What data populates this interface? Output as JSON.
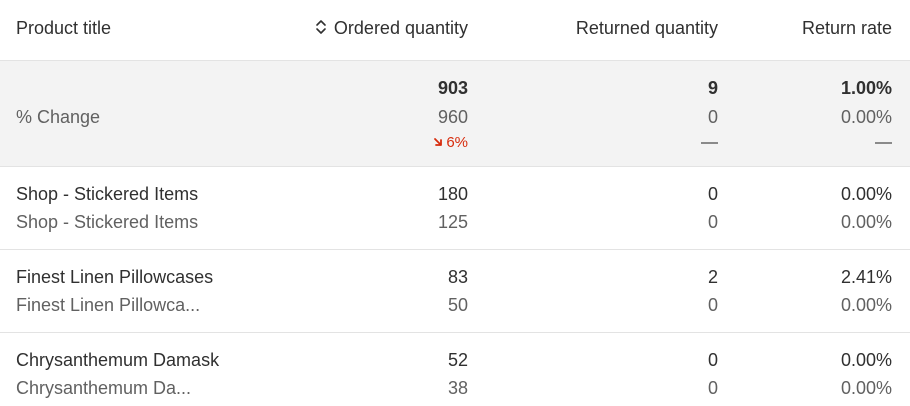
{
  "header": {
    "product_title": "Product title",
    "ordered_quantity": "Ordered quantity",
    "returned_quantity": "Returned quantity",
    "return_rate": "Return rate"
  },
  "summary": {
    "label": "% Change",
    "ordered_current": "903",
    "ordered_previous": "960",
    "ordered_change": "6%",
    "returned_current": "9",
    "returned_previous": "0",
    "rate_current": "1.00%",
    "rate_previous": "0.00%",
    "change_color": "#d72c0d"
  },
  "rows": [
    {
      "title": "Shop - Stickered Items",
      "title_previous": "Shop - Stickered Items",
      "ordered_current": "180",
      "ordered_previous": "125",
      "returned_current": "0",
      "returned_previous": "0",
      "rate_current": "0.00%",
      "rate_previous": "0.00%"
    },
    {
      "title": "Finest Linen Pillowcases",
      "title_previous": "Finest Linen Pillowca...",
      "ordered_current": "83",
      "ordered_previous": "50",
      "returned_current": "2",
      "returned_previous": "0",
      "rate_current": "2.41%",
      "rate_previous": "0.00%"
    },
    {
      "title": "Chrysanthemum Damask",
      "title_previous": "Chrysanthemum Da...",
      "ordered_current": "52",
      "ordered_previous": "38",
      "returned_current": "0",
      "returned_previous": "0",
      "rate_current": "0.00%",
      "rate_previous": "0.00%"
    }
  ]
}
